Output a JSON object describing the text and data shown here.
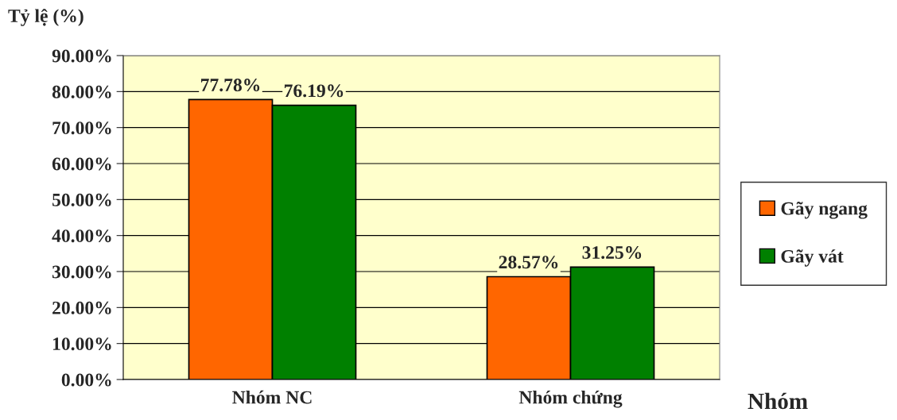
{
  "chart_data": {
    "type": "bar",
    "ylabel": "Tỷ lệ (%)",
    "xlabel": "Nhóm",
    "categories": [
      "Nhóm NC",
      "Nhóm chứng"
    ],
    "series": [
      {
        "name": "Gãy ngang",
        "color": "#ff6600",
        "values": [
          77.78,
          28.57
        ],
        "value_labels": [
          "77.78%",
          "28.57%"
        ]
      },
      {
        "name": "Gãy vát",
        "color": "#008000",
        "values": [
          76.19,
          31.25
        ],
        "value_labels": [
          "76.19%",
          "31.25%"
        ]
      }
    ],
    "ylim": [
      0,
      90
    ],
    "yticks": [
      {
        "value": 0,
        "label": "0.00%"
      },
      {
        "value": 10,
        "label": "10.00%"
      },
      {
        "value": 20,
        "label": "20.00%"
      },
      {
        "value": 30,
        "label": "30.00%"
      },
      {
        "value": 40,
        "label": "40.00%"
      },
      {
        "value": 50,
        "label": "50.00%"
      },
      {
        "value": 60,
        "label": "60.00%"
      },
      {
        "value": 70,
        "label": "70.00%"
      },
      {
        "value": 80,
        "label": "80.00%"
      },
      {
        "value": 90,
        "label": "90.00%"
      }
    ],
    "grid": "y",
    "legend": "right"
  }
}
